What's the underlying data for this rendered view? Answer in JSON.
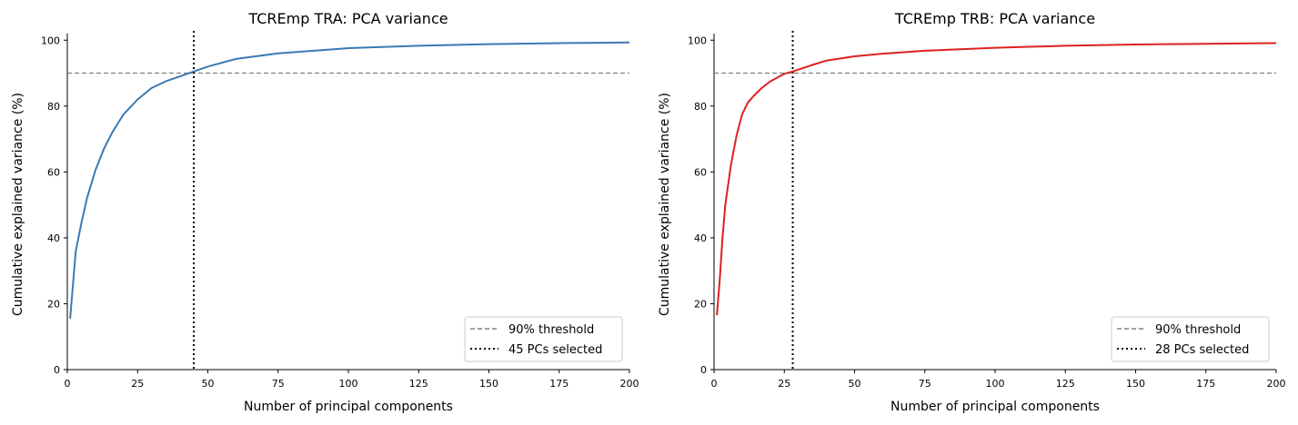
{
  "chart_data": [
    {
      "type": "line",
      "title": "TCREmp TRA: PCA variance",
      "xlabel": "Number of principal components",
      "ylabel": "Cumulative explained variance (%)",
      "xlim": [
        0,
        200
      ],
      "ylim": [
        0,
        102
      ],
      "xticks": [
        0,
        25,
        50,
        75,
        100,
        125,
        150,
        175,
        200
      ],
      "yticks": [
        0,
        20,
        40,
        60,
        80,
        100
      ],
      "grid": false,
      "legend_position": "lower-right",
      "series": [
        {
          "color": "#3a7ab4",
          "x": [
            1,
            3,
            5,
            7,
            10,
            13,
            16,
            20,
            25,
            30,
            35,
            40,
            45,
            50,
            60,
            75,
            100,
            125,
            150,
            175,
            200
          ],
          "y": [
            15.5,
            36,
            44.5,
            52,
            60.5,
            67,
            72,
            77.5,
            82,
            85.5,
            87.5,
            89,
            90.5,
            92,
            94.3,
            96,
            97.6,
            98.3,
            98.8,
            99.1,
            99.3
          ]
        }
      ],
      "threshold": {
        "y": 90,
        "label": "90% threshold",
        "color": "#808080"
      },
      "selected": {
        "x": 45,
        "label": "45 PCs selected",
        "color": "#000000"
      }
    },
    {
      "type": "line",
      "title": "TCREmp TRB: PCA variance",
      "xlabel": "Number of principal components",
      "ylabel": "Cumulative explained variance (%)",
      "xlim": [
        0,
        200
      ],
      "ylim": [
        0,
        102
      ],
      "xticks": [
        0,
        25,
        50,
        75,
        100,
        125,
        150,
        175,
        200
      ],
      "yticks": [
        0,
        20,
        40,
        60,
        80,
        100
      ],
      "grid": false,
      "legend_position": "lower-right",
      "series": [
        {
          "color": "#de2121",
          "x": [
            1,
            2,
            3,
            4,
            6,
            8,
            10,
            12,
            14,
            17,
            20,
            25,
            28,
            35,
            40,
            50,
            60,
            75,
            100,
            125,
            150,
            175,
            200
          ],
          "y": [
            16.5,
            27,
            40,
            50,
            62,
            71,
            77.5,
            81,
            83,
            85.5,
            87.5,
            89.8,
            90.5,
            92.5,
            93.8,
            95.1,
            95.9,
            96.8,
            97.7,
            98.3,
            98.7,
            98.9,
            99.1
          ]
        }
      ],
      "threshold": {
        "y": 90,
        "label": "90% threshold",
        "color": "#808080"
      },
      "selected": {
        "x": 28,
        "label": "28 PCs selected",
        "color": "#000000"
      }
    }
  ]
}
